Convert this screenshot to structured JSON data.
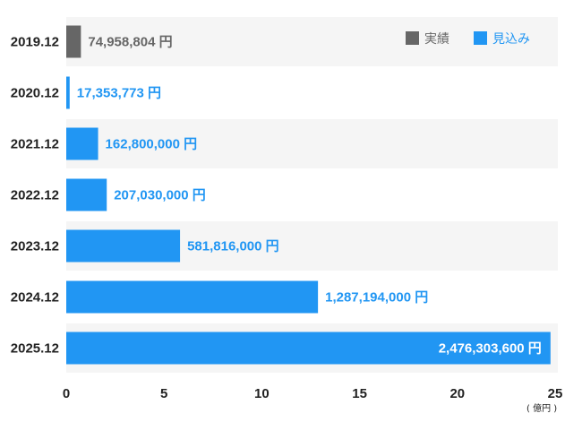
{
  "chart_data": {
    "type": "bar",
    "orientation": "horizontal",
    "categories": [
      "2019.12",
      "2020.12",
      "2021.12",
      "2022.12",
      "2023.12",
      "2024.12",
      "2025.12"
    ],
    "values": [
      0.74958804,
      0.17353773,
      1.628,
      2.0703,
      5.81816,
      12.87194,
      24.763036
    ],
    "value_labels": [
      "74,958,804 円",
      "17,353,773 円",
      "162,800,000 円",
      "207,030,000 円",
      "581,816,000 円",
      "1,287,194,000 円",
      "2,476,303,600 円"
    ],
    "bar_kinds": [
      "actual",
      "forecast",
      "forecast",
      "forecast",
      "forecast",
      "forecast",
      "forecast"
    ],
    "series": [
      {
        "key": "actual",
        "name": "実績",
        "color": "#666666"
      },
      {
        "key": "forecast",
        "name": "見込み",
        "color": "#2196f3"
      }
    ],
    "xlim": [
      0,
      25
    ],
    "xticks": [
      0,
      5,
      10,
      15,
      20,
      25
    ],
    "unit": "( 億円 )",
    "legend_position": "top-right",
    "row_band_color": "#f5f5f5",
    "inside_label_color": "#ffffff"
  }
}
